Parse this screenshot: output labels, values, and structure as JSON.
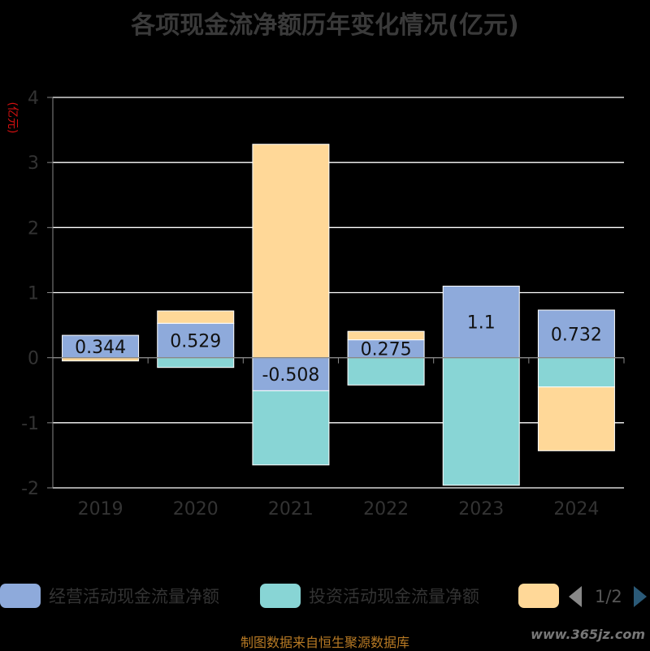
{
  "title": "各项现金流净额历年变化情况(亿元)",
  "y_unit_label": "(亿元)",
  "colors": {
    "operating": "#8eaadb",
    "investing": "#88d5d5",
    "financing": "#ffd898",
    "axis": "#888888",
    "grid": "#ffffff",
    "label_text": "#111111",
    "tick_text": "#333333"
  },
  "legend": {
    "items": [
      {
        "label": "经营活动现金流量净额",
        "color": "#8eaadb"
      },
      {
        "label": "投资活动现金流量净额",
        "color": "#88d5d5"
      },
      {
        "label": "",
        "color": "#ffd898"
      }
    ],
    "page_indicator": "1/2"
  },
  "footer": {
    "source": "制图数据来自恒生聚源数据库",
    "watermark": "www.365jz.com"
  },
  "chart_data": {
    "type": "bar",
    "stacked": true,
    "categories": [
      "2019",
      "2020",
      "2021",
      "2022",
      "2023",
      "2024"
    ],
    "series": [
      {
        "name": "经营活动现金流量净额",
        "values": [
          0.344,
          0.529,
          -0.508,
          0.275,
          1.1,
          0.732
        ]
      },
      {
        "name": "投资活动现金流量净额",
        "values": [
          0.0,
          -0.15,
          -1.14,
          -0.42,
          -1.96,
          -0.45
        ]
      },
      {
        "values": [
          -0.05,
          0.19,
          3.28,
          0.13,
          0.0,
          -0.98
        ]
      }
    ],
    "data_labels": [
      "0.344",
      "0.529",
      "-0.508",
      "0.275",
      "1.1",
      "0.732"
    ],
    "ylim": [
      -2,
      4
    ],
    "yticks": [
      4,
      3,
      2,
      1,
      0,
      -1,
      -2
    ],
    "grid": true,
    "legend_position": "bottom"
  }
}
